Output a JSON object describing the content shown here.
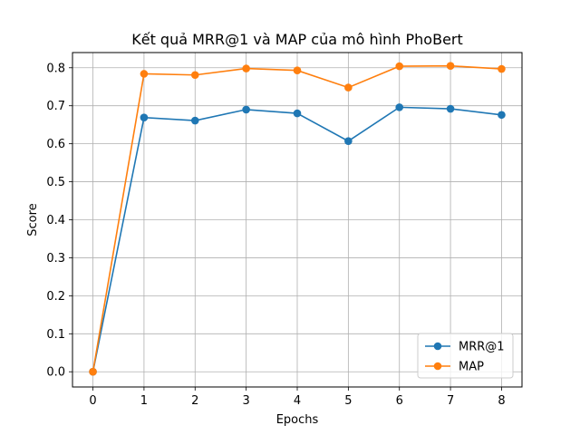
{
  "chart_data": {
    "type": "line",
    "title": "Kết quả MRR@1 và MAP của mô hình PhoBert",
    "xlabel": "Epochs",
    "ylabel": "Score",
    "x": [
      0,
      1,
      2,
      3,
      4,
      5,
      6,
      7,
      8
    ],
    "xticks": [
      "0",
      "1",
      "2",
      "3",
      "4",
      "5",
      "6",
      "7",
      "8"
    ],
    "yticks": [
      "0.0",
      "0.1",
      "0.2",
      "0.3",
      "0.4",
      "0.5",
      "0.6",
      "0.7",
      "0.8"
    ],
    "xlim": [
      -0.4,
      8.4
    ],
    "ylim": [
      -0.04,
      0.84
    ],
    "grid": true,
    "legend_position": "lower-right",
    "series": [
      {
        "name": "MRR@1",
        "color": "#1f77b4",
        "values": [
          0.0,
          0.669,
          0.661,
          0.69,
          0.68,
          0.607,
          0.696,
          0.692,
          0.676
        ]
      },
      {
        "name": "MAP",
        "color": "#ff7f0e",
        "values": [
          0.0,
          0.784,
          0.781,
          0.798,
          0.793,
          0.748,
          0.804,
          0.805,
          0.797
        ]
      }
    ]
  }
}
